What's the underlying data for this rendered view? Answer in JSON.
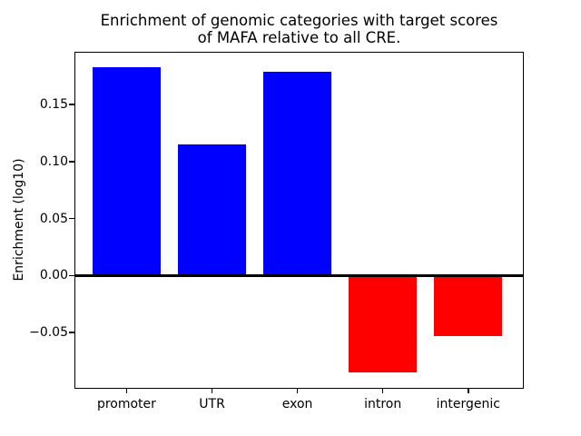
{
  "chart_data": {
    "type": "bar",
    "title_line1": "Enrichment of genomic categories with target scores",
    "title_line2": "of MAFA relative to all CRE.",
    "ylabel": "Enrichment (log10)",
    "xlabel": "",
    "categories": [
      "promoter",
      "UTR",
      "exon",
      "intron",
      "intergenic"
    ],
    "values": [
      0.183,
      0.115,
      0.179,
      -0.085,
      -0.053
    ],
    "series": [
      {
        "name": "Enrichment (log10)",
        "values": [
          0.183,
          0.115,
          0.179,
          -0.085,
          -0.053
        ]
      }
    ],
    "positive_color": "#0000ff",
    "negative_color": "#ff0000",
    "bar_colors": [
      "#0000ff",
      "#0000ff",
      "#0000ff",
      "#ff0000",
      "#ff0000"
    ],
    "axis_color": "#000000",
    "background_color": "#ffffff",
    "ylim": [
      -0.0986,
      0.1956
    ],
    "ytick_values": [
      0.15,
      0.1,
      0.05,
      0.0,
      -0.05
    ],
    "ytick_labels": [
      "0.15",
      "0.10",
      "0.05",
      "0.00",
      "−0.05"
    ],
    "grid": false,
    "legend": false,
    "zero_line": true,
    "bar_relative_width": 0.8
  }
}
